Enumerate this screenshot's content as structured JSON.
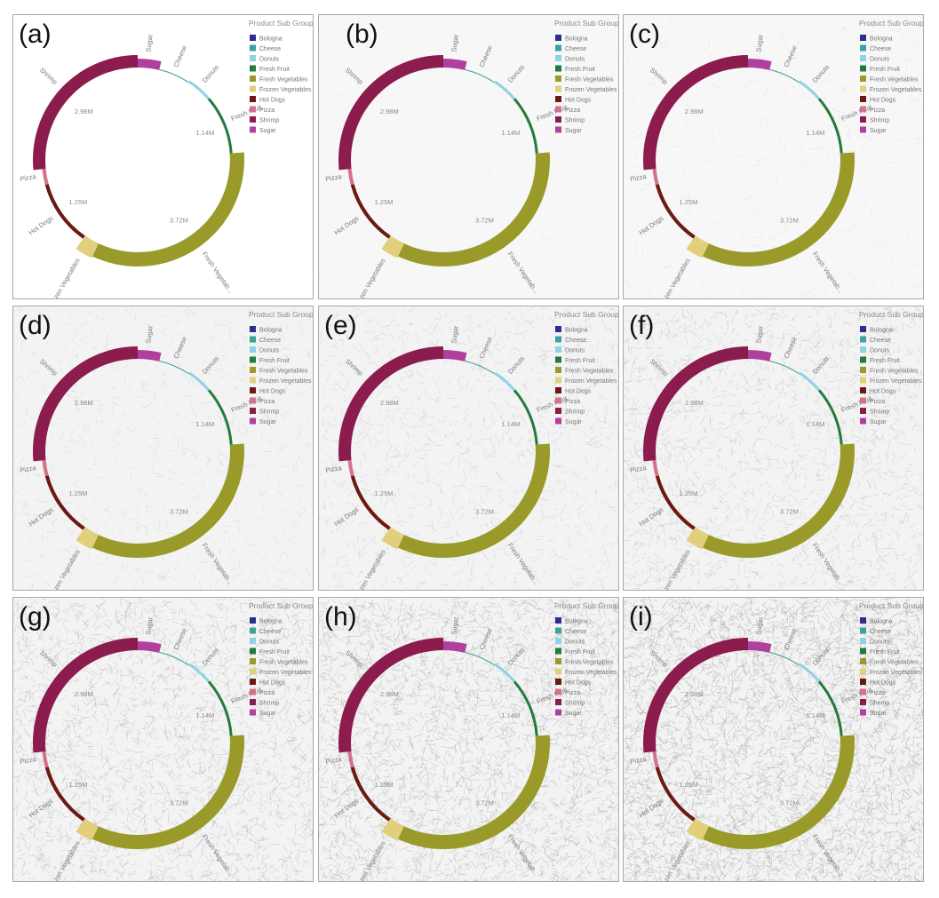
{
  "panels": [
    {
      "label": "(a)",
      "noise": 0
    },
    {
      "label": "(b)",
      "noise": 1
    },
    {
      "label": "(c)",
      "noise": 2
    },
    {
      "label": "(d)",
      "noise": 3
    },
    {
      "label": "(e)",
      "noise": 4
    },
    {
      "label": "(f)",
      "noise": 5
    },
    {
      "label": "(g)",
      "noise": 6
    },
    {
      "label": "(h)",
      "noise": 7
    },
    {
      "label": "(i)",
      "noise": 8
    }
  ],
  "chart_data": {
    "type": "pie",
    "legend_title": "Product Sub Group",
    "legend_placement": "top-right",
    "categories": [
      "Bologna",
      "Cheese",
      "Donuts",
      "Fresh Fruit",
      "Fresh Vegetables",
      "Frozen Vegetables",
      "Hot Dogs",
      "Pizza",
      "Shrimp",
      "Sugar"
    ],
    "colors": [
      "#2b2d8f",
      "#3aa39a",
      "#8fd2e8",
      "#237a3b",
      "#9a9a2a",
      "#e2cf7c",
      "#6b1a12",
      "#d3728a",
      "#8c1c4e",
      "#b0409f"
    ],
    "slices": [
      {
        "name": "Sugar",
        "label": "Sugar",
        "value": 0.42,
        "thickness": 10,
        "color": "#b0409f"
      },
      {
        "name": "Cheese",
        "label": "Cheese",
        "value": 0.62,
        "thickness": 1,
        "color": "#3aa39a"
      },
      {
        "name": "Donuts",
        "label": "Donuts",
        "value": 0.5,
        "thickness": 3,
        "color": "#8fd2e8"
      },
      {
        "name": "Fresh Fruit",
        "label": "Fresh Fruit",
        "value": 1.14,
        "value_label": "1.14M",
        "thickness": 3,
        "color": "#237a3b"
      },
      {
        "name": "Fresh Vegetables",
        "label": "Fresh Vegetab...",
        "value": 3.72,
        "value_label": "3.72M",
        "thickness": 16,
        "color": "#9a9a2a"
      },
      {
        "name": "Frozen Vegetables",
        "label": "Frozen Vegetables",
        "value": 0.3,
        "thickness": 18,
        "color": "#e2cf7c"
      },
      {
        "name": "Hot Dogs",
        "label": "Hot Dogs",
        "value": 1.25,
        "value_label": "1.25M",
        "thickness": 4,
        "color": "#6b1a12"
      },
      {
        "name": "Pizza",
        "label": "Pizza",
        "value": 0.3,
        "thickness": 4,
        "color": "#d3728a"
      },
      {
        "name": "Shrimp",
        "label": "Shrimp",
        "value": 2.98,
        "value_label": "2.98M",
        "thickness": 14,
        "color": "#8c1c4e"
      }
    ]
  }
}
